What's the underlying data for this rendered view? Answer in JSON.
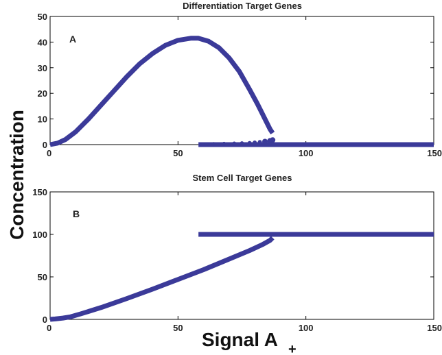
{
  "style": {
    "series_color": "#3b3a99"
  },
  "ylabel": "Concentration",
  "xlabel_main": "Signal A",
  "xlabel_subscript": "+",
  "chart_data": [
    {
      "type": "line",
      "panel_label": "A",
      "title": "Differentiation Target Genes",
      "xlim": [
        0,
        150
      ],
      "ylim": [
        0,
        50
      ],
      "xticks": [
        0,
        50,
        100,
        150
      ],
      "yticks": [
        0,
        10,
        20,
        30,
        40,
        50
      ],
      "xtick_labels": [
        "0",
        "50",
        "100",
        "150"
      ],
      "ytick_labels": [
        "0",
        "10",
        "20",
        "30",
        "40",
        "50"
      ],
      "series": [
        {
          "kind": "line",
          "x": [
            0,
            3,
            6,
            10,
            15,
            20,
            25,
            30,
            35,
            40,
            45,
            50,
            55,
            58,
            62,
            66,
            70,
            74,
            78,
            81,
            83,
            85,
            86,
            87
          ],
          "y": [
            0,
            0.6,
            2,
            5,
            10,
            15.5,
            21,
            26.5,
            31.5,
            35.5,
            38.7,
            40.7,
            41.5,
            41.5,
            40.3,
            37.8,
            33.8,
            28.5,
            21.5,
            16,
            12,
            8,
            6,
            4.5
          ]
        },
        {
          "kind": "line",
          "x": [
            58,
            150
          ],
          "y": [
            0,
            0
          ]
        },
        {
          "kind": "scatter",
          "x": [
            61,
            64,
            68,
            72,
            75,
            78,
            80,
            82,
            84,
            86,
            87
          ],
          "y": [
            0.1,
            0.2,
            0.3,
            0.4,
            0.5,
            0.6,
            0.8,
            1,
            1.2,
            1.5,
            1.8
          ]
        }
      ]
    },
    {
      "type": "line",
      "panel_label": "B",
      "title": "Stem Cell Target Genes",
      "xlim": [
        0,
        150
      ],
      "ylim": [
        0,
        150
      ],
      "xticks": [
        0,
        50,
        100,
        150
      ],
      "yticks": [
        0,
        50,
        100,
        150
      ],
      "xtick_labels": [
        "0",
        "50",
        "100",
        "150"
      ],
      "ytick_labels": [
        "0",
        "50",
        "100",
        "150"
      ],
      "series": [
        {
          "kind": "line",
          "x": [
            0,
            2,
            5,
            8,
            12,
            20,
            30,
            40,
            50,
            60,
            70,
            78,
            83,
            86,
            87
          ],
          "y": [
            0,
            0.5,
            1.5,
            3,
            6.5,
            14,
            24.5,
            35.5,
            47,
            58.5,
            71,
            81,
            88,
            93,
            96
          ]
        },
        {
          "kind": "line",
          "x": [
            58,
            150
          ],
          "y": [
            100,
            100
          ]
        }
      ]
    }
  ]
}
